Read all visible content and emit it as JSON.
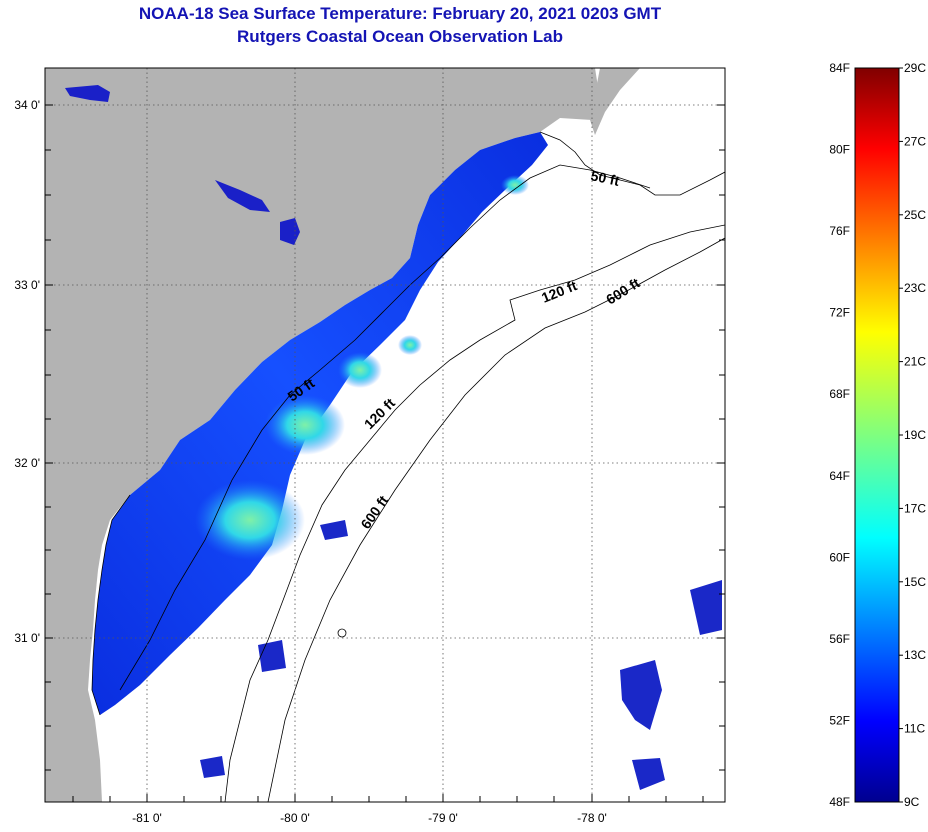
{
  "header": {
    "title": "NOAA-18 Sea Surface Temperature:  February 20, 2021 0203 GMT",
    "subtitle": "Rutgers Coastal Ocean Observation Lab"
  },
  "map": {
    "lon_ticks": [
      "-81 0'",
      "-80 0'",
      "-79 0'",
      "-78 0'"
    ],
    "lat_ticks": [
      "34 0'",
      "33 0'",
      "32 0'",
      "31 0'"
    ],
    "contours": [
      "50 ft",
      "120 ft",
      "600 ft",
      "50 ft",
      "120 ft",
      "600 ft"
    ],
    "colors": {
      "land": "#b3b3b3",
      "water_no_data": "#ffffff",
      "frame": "#000000"
    }
  },
  "colorbar": {
    "fahrenheit_labels": [
      "84F",
      "80F",
      "76F",
      "72F",
      "68F",
      "64F",
      "60F",
      "56F",
      "52F",
      "48F"
    ],
    "celsius_labels": [
      "29C",
      "27C",
      "25C",
      "23C",
      "21C",
      "19C",
      "17C",
      "15C",
      "13C",
      "11C",
      "9C"
    ],
    "colormap": "jet"
  }
}
